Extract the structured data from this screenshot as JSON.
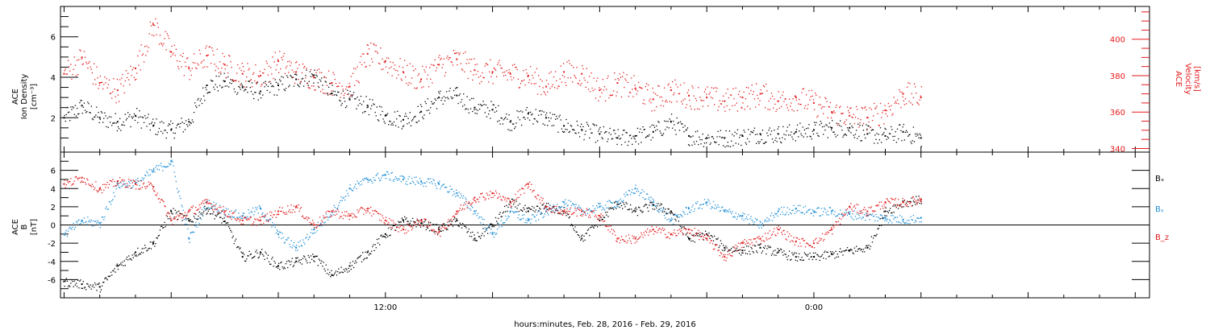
{
  "chart_data": [
    {
      "type": "scatter",
      "panel": "top",
      "ylabel_left": [
        "ACE",
        "Ion Density",
        "[cm⁻³]"
      ],
      "ylabel_right": [
        "ACE",
        "Velocity",
        "[km/s]"
      ],
      "x_ticks": [
        {
          "hour": 12,
          "label": "12:00"
        },
        {
          "hour": 24,
          "label": "0:00"
        }
      ],
      "xlim_hours": [
        2.9,
        33.4
      ],
      "ylim_left": [
        0.3,
        7.5
      ],
      "ylim_right": [
        338,
        418
      ],
      "yticks_left": [
        2,
        4,
        6
      ],
      "yticks_right": [
        340,
        360,
        380,
        400
      ],
      "series": [
        {
          "axis": "left",
          "color": "#000000",
          "x": [
            3.0,
            3.5,
            4.0,
            4.5,
            5.0,
            5.5,
            6.0,
            6.5,
            7.0,
            7.5,
            8.0,
            8.5,
            9.0,
            9.5,
            10.0,
            10.5,
            11.0,
            11.5,
            12.0,
            12.5,
            13.0,
            13.5,
            14.0,
            14.5,
            15.0,
            15.5,
            16.0,
            16.5,
            17.0,
            17.5,
            18.0,
            18.5,
            19.0,
            19.5,
            20.0,
            20.5,
            21.0,
            21.5,
            22.0,
            22.5,
            23.0,
            23.5,
            24.0,
            24.5,
            25.0,
            25.5,
            26.0,
            26.5,
            27.0
          ],
          "y": [
            2.0,
            2.6,
            2.0,
            1.8,
            2.1,
            1.6,
            1.4,
            1.8,
            3.6,
            3.8,
            3.5,
            3.3,
            3.6,
            3.9,
            4.1,
            3.2,
            2.9,
            2.6,
            2.1,
            1.9,
            2.3,
            3.0,
            3.1,
            2.5,
            2.4,
            1.8,
            2.2,
            2.0,
            1.6,
            1.4,
            1.2,
            1.0,
            1.1,
            1.3,
            1.8,
            1.1,
            1.0,
            1.0,
            1.1,
            1.2,
            1.2,
            1.3,
            1.4,
            1.5,
            1.5,
            1.2,
            1.1,
            1.3,
            1.0
          ]
        },
        {
          "axis": "right",
          "color": "#e31a1c",
          "x": [
            3.0,
            3.5,
            4.0,
            4.5,
            5.0,
            5.5,
            6.0,
            6.5,
            7.0,
            7.5,
            8.0,
            8.5,
            9.0,
            9.5,
            10.0,
            10.5,
            11.0,
            11.5,
            12.0,
            12.5,
            13.0,
            13.5,
            14.0,
            14.5,
            15.0,
            15.5,
            16.0,
            16.5,
            17.0,
            17.5,
            18.0,
            18.5,
            19.0,
            19.5,
            20.0,
            20.5,
            21.0,
            21.5,
            22.0,
            22.5,
            23.0,
            23.5,
            24.0,
            24.5,
            25.0,
            25.5,
            26.0,
            26.5,
            27.0
          ],
          "y": [
            381,
            390,
            376,
            372,
            384,
            408,
            393,
            384,
            391,
            386,
            381,
            380,
            388,
            382,
            379,
            376,
            374,
            392,
            388,
            382,
            378,
            386,
            389,
            383,
            382,
            381,
            380,
            374,
            382,
            381,
            372,
            376,
            373,
            367,
            372,
            369,
            368,
            366,
            368,
            370,
            366,
            368,
            365,
            360,
            358,
            357,
            361,
            370,
            368
          ]
        }
      ]
    },
    {
      "type": "scatter",
      "panel": "bottom",
      "ylabel_left": [
        "ACE",
        "B",
        "[nT]"
      ],
      "xlabel": "hours:minutes, Feb. 28, 2016 - Feb. 29, 2016",
      "x_ticks": [
        {
          "hour": 12,
          "label": "12:00"
        },
        {
          "hour": 24,
          "label": "0:00"
        }
      ],
      "xlim_hours": [
        2.9,
        33.4
      ],
      "ylim": [
        -8,
        8
      ],
      "yticks": [
        -6,
        -4,
        -2,
        0,
        2,
        4,
        6
      ],
      "zero_line": true,
      "series": [
        {
          "name": "Bₓ",
          "color": "#000000",
          "x": [
            3.0,
            3.5,
            4.0,
            4.5,
            5.0,
            5.5,
            6.0,
            6.5,
            7.0,
            7.5,
            8.0,
            8.5,
            9.0,
            9.5,
            10.0,
            10.5,
            11.0,
            11.5,
            12.0,
            12.5,
            13.0,
            13.5,
            14.0,
            14.5,
            15.0,
            15.5,
            16.0,
            16.5,
            17.0,
            17.5,
            18.0,
            18.5,
            19.0,
            19.5,
            20.0,
            20.5,
            21.0,
            21.5,
            22.0,
            22.5,
            23.0,
            23.5,
            24.0,
            24.5,
            25.0,
            25.5,
            26.0,
            26.5,
            27.0
          ],
          "y": [
            -6.2,
            -6.5,
            -6.8,
            -4.5,
            -3.0,
            -2.0,
            1.5,
            0.5,
            1.8,
            0.4,
            -3.5,
            -3.0,
            -4.5,
            -4.0,
            -3.5,
            -5.5,
            -4.5,
            -3.0,
            -1.0,
            0.5,
            0.2,
            -0.5,
            0.5,
            -1.5,
            0.0,
            2.5,
            1.5,
            2.0,
            1.5,
            -1.5,
            0.5,
            2.5,
            1.5,
            2.2,
            1.5,
            -1.5,
            -1.0,
            -2.5,
            -2.8,
            -2.5,
            -3.0,
            -3.5,
            -3.5,
            -3.2,
            -2.8,
            -2.5,
            1.5,
            2.5,
            2.8
          ]
        },
        {
          "name": "Bᵧ",
          "color": "#1f8fd6",
          "x": [
            3.0,
            3.5,
            4.0,
            4.5,
            5.0,
            5.5,
            6.0,
            6.5,
            7.0,
            7.5,
            8.0,
            8.5,
            9.0,
            9.5,
            10.0,
            10.5,
            11.0,
            11.5,
            12.0,
            12.5,
            13.0,
            13.5,
            14.0,
            14.5,
            15.0,
            15.5,
            16.0,
            16.5,
            17.0,
            17.5,
            18.0,
            18.5,
            19.0,
            19.5,
            20.0,
            20.5,
            21.0,
            21.5,
            22.0,
            22.5,
            23.0,
            23.5,
            24.0,
            24.5,
            25.0,
            25.5,
            26.0,
            26.5,
            27.0
          ],
          "y": [
            -1.0,
            0.5,
            0.2,
            4.5,
            4.6,
            6.0,
            7.0,
            -1.5,
            2.5,
            1.5,
            1.0,
            1.8,
            -1.0,
            -2.5,
            -0.5,
            1.5,
            4.0,
            5.0,
            5.5,
            5.0,
            4.8,
            4.5,
            3.5,
            1.5,
            -1.0,
            1.5,
            0.5,
            1.5,
            2.5,
            1.5,
            2.0,
            2.5,
            4.0,
            2.5,
            0.5,
            1.8,
            2.5,
            1.5,
            1.0,
            0.0,
            1.5,
            1.8,
            1.5,
            1.5,
            1.2,
            1.0,
            0.8,
            0.6,
            0.8
          ]
        },
        {
          "name": "B_z",
          "color": "#e31a1c",
          "x": [
            3.0,
            3.5,
            4.0,
            4.5,
            5.0,
            5.5,
            6.0,
            6.5,
            7.0,
            7.5,
            8.0,
            8.5,
            9.0,
            9.5,
            10.0,
            10.5,
            11.0,
            11.5,
            12.0,
            12.5,
            13.0,
            13.5,
            14.0,
            14.5,
            15.0,
            15.5,
            16.0,
            16.5,
            17.0,
            17.5,
            18.0,
            18.5,
            19.0,
            19.5,
            20.0,
            20.5,
            21.0,
            21.5,
            22.0,
            22.5,
            23.0,
            23.5,
            24.0,
            24.5,
            25.0,
            25.5,
            26.0,
            26.5,
            27.0
          ],
          "y": [
            4.5,
            5.2,
            4.0,
            4.8,
            4.5,
            4.2,
            0.5,
            1.5,
            2.5,
            1.5,
            0.5,
            0.5,
            1.5,
            2.0,
            0.0,
            1.5,
            1.0,
            1.8,
            0.5,
            -0.5,
            0.5,
            -0.8,
            1.5,
            3.0,
            3.5,
            2.5,
            4.5,
            2.0,
            1.5,
            1.5,
            1.0,
            -1.5,
            -1.5,
            -0.5,
            -1.0,
            -0.5,
            -1.5,
            -3.5,
            -2.0,
            -1.5,
            -0.5,
            -1.8,
            -2.0,
            -0.5,
            2.0,
            1.5,
            2.5,
            2.5,
            2.8
          ]
        }
      ]
    }
  ]
}
